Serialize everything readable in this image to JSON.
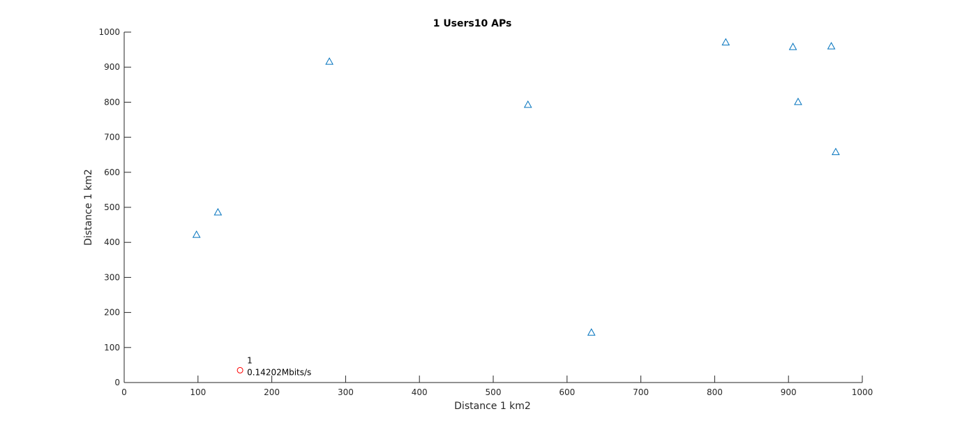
{
  "chart_data": {
    "type": "scatter",
    "title": "1 Users10 APs",
    "xlabel": "Distance 1 km2",
    "ylabel": "Distance 1 km2",
    "xlim": [
      0,
      1000
    ],
    "ylim": [
      0,
      1000
    ],
    "xticks": [
      "0",
      "100",
      "200",
      "300",
      "400",
      "500",
      "600",
      "700",
      "800",
      "900",
      "1000"
    ],
    "yticks": [
      "0",
      "100",
      "200",
      "300",
      "400",
      "500",
      "600",
      "700",
      "800",
      "900",
      "1000"
    ],
    "grid": false,
    "series": [
      {
        "marker": "triangle",
        "color": "#0072BD",
        "points": [
          {
            "x": 98,
            "y": 422
          },
          {
            "x": 127,
            "y": 486
          },
          {
            "x": 278,
            "y": 916
          },
          {
            "x": 547,
            "y": 793
          },
          {
            "x": 633,
            "y": 143
          },
          {
            "x": 815,
            "y": 971
          },
          {
            "x": 906,
            "y": 958
          },
          {
            "x": 913,
            "y": 801
          },
          {
            "x": 958,
            "y": 960
          },
          {
            "x": 964,
            "y": 658
          }
        ]
      },
      {
        "marker": "circle",
        "color": "#FF0000",
        "points": [
          {
            "x": 157,
            "y": 35
          }
        ]
      }
    ],
    "annotations": [
      {
        "x": 157,
        "y": 35,
        "lines": [
          "1",
          "0.14202Mbits/s"
        ]
      }
    ]
  }
}
